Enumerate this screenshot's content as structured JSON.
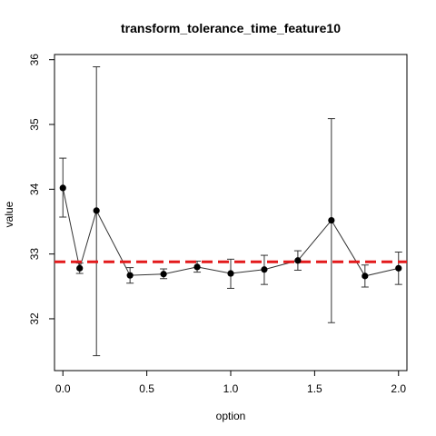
{
  "chart_data": {
    "type": "line",
    "title": "transform_tolerance_time_feature10",
    "xlabel": "option",
    "ylabel": "value",
    "xlim": [
      -0.05,
      2.05
    ],
    "ylim": [
      31.2,
      36.08
    ],
    "x_ticks": [
      "0.0",
      "0.5",
      "1.0",
      "1.5",
      "2.0"
    ],
    "y_ticks": [
      "32",
      "33",
      "34",
      "35",
      "36"
    ],
    "grid": false,
    "series": [
      {
        "x": [
          0.0,
          0.1,
          0.2,
          0.4,
          0.6,
          0.8,
          1.0,
          1.2,
          1.4,
          1.6,
          1.8,
          2.0
        ],
        "y": [
          34.02,
          32.78,
          33.67,
          32.67,
          32.69,
          32.8,
          32.7,
          32.76,
          32.9,
          33.52,
          32.66,
          32.78
        ],
        "err_low": [
          33.57,
          32.7,
          31.43,
          32.55,
          32.62,
          32.72,
          32.47,
          32.53,
          32.75,
          31.94,
          32.49,
          32.53
        ],
        "err_high": [
          34.48,
          32.86,
          35.89,
          32.79,
          32.77,
          32.89,
          32.92,
          32.98,
          33.05,
          35.09,
          32.83,
          33.03
        ],
        "color": "#000000"
      }
    ],
    "reference_line": {
      "y": 32.88,
      "color": "#e31a1c",
      "style": "dashed"
    }
  }
}
